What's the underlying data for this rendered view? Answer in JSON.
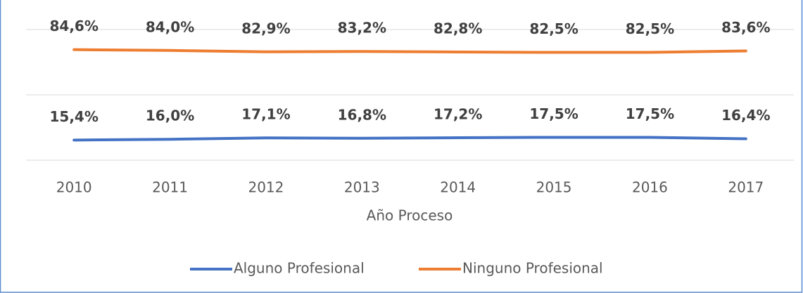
{
  "chart_data": {
    "type": "line",
    "x_label": "Año Proceso",
    "categories": [
      "2010",
      "2011",
      "2012",
      "2013",
      "2014",
      "2015",
      "2016",
      "2017"
    ],
    "series": [
      {
        "name": "Alguno Profesional",
        "color": "#4472c4",
        "values": [
          15.4,
          16.0,
          17.1,
          16.8,
          17.2,
          17.5,
          17.5,
          16.4
        ],
        "value_labels": [
          "15,4%",
          "16,0%",
          "17,1%",
          "16,8%",
          "17,2%",
          "17,5%",
          "17,5%",
          "16,4%"
        ]
      },
      {
        "name": "Ninguno Profesional",
        "color": "#ed7d31",
        "values": [
          84.6,
          84.0,
          82.9,
          83.2,
          82.8,
          82.5,
          82.5,
          83.6
        ],
        "value_labels": [
          "84,6%",
          "84,0%",
          "82,9%",
          "83,2%",
          "82,8%",
          "82,5%",
          "82,5%",
          "83,6%"
        ]
      }
    ],
    "ylim": [
      0,
      100
    ],
    "yticks": [
      0,
      50,
      100
    ],
    "grid": true,
    "legend": "bottom"
  }
}
